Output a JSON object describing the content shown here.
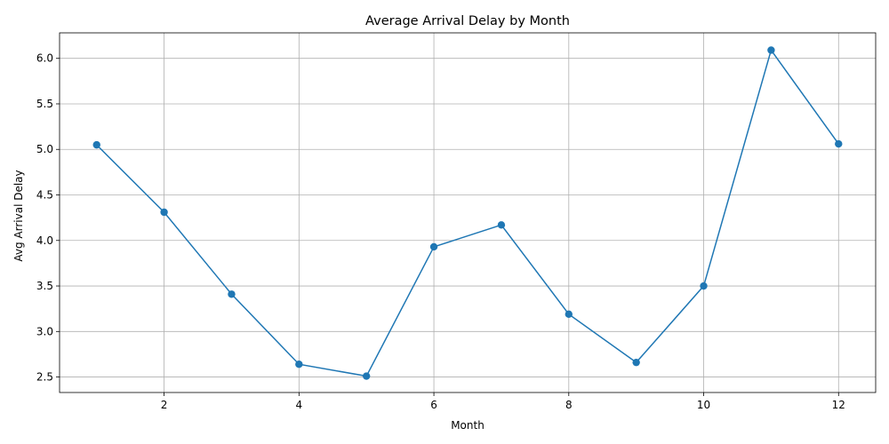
{
  "chart_data": {
    "type": "line",
    "title": "Average Arrival Delay by Month",
    "xlabel": "Month",
    "ylabel": "Avg Arrival Delay",
    "x": [
      1,
      2,
      3,
      4,
      5,
      6,
      7,
      8,
      9,
      10,
      11,
      12
    ],
    "values": [
      5.05,
      4.31,
      3.41,
      2.64,
      2.51,
      3.93,
      4.17,
      3.19,
      2.66,
      3.5,
      6.09,
      5.06
    ],
    "xlim": [
      0.45,
      12.55
    ],
    "ylim": [
      2.33,
      6.28
    ],
    "xticks": [
      2,
      4,
      6,
      8,
      10,
      12
    ],
    "yticks": [
      2.5,
      3.0,
      3.5,
      4.0,
      4.5,
      5.0,
      5.5,
      6.0
    ],
    "xtick_labels": [
      "2",
      "4",
      "6",
      "8",
      "10",
      "12"
    ],
    "ytick_labels": [
      "2.5",
      "3.0",
      "3.5",
      "4.0",
      "4.5",
      "5.0",
      "5.5",
      "6.0"
    ],
    "grid": true,
    "marker": "circle",
    "line_color": "#1f77b4"
  }
}
